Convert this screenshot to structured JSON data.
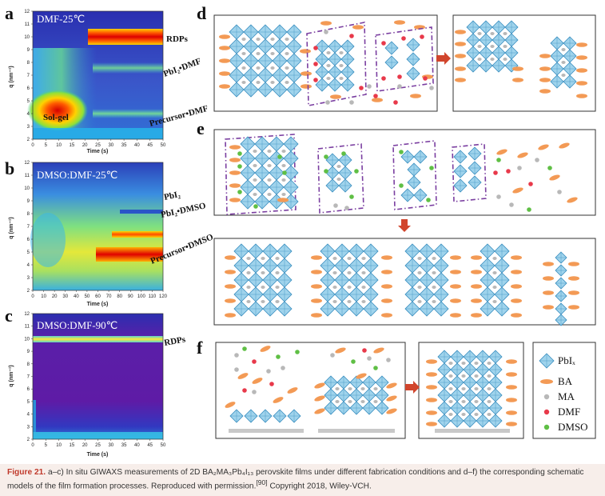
{
  "panels": {
    "a": {
      "label": "a",
      "condition": "DMF-25℃",
      "xlabel": "Time (s)",
      "ylabel": "q (nm⁻¹)",
      "xticks": [
        "0",
        "5",
        "10",
        "15",
        "20",
        "25",
        "30",
        "35",
        "40",
        "45",
        "50"
      ],
      "yticks": [
        "2",
        "3",
        "4",
        "5",
        "6",
        "7",
        "8",
        "9",
        "10",
        "11",
        "12"
      ],
      "annotations": {
        "rdps": "RDPs",
        "pbi2_dmf": "PbI₂•DMF",
        "precursor_dmf": "Precursor•DMF",
        "solgel": "Sol-gel"
      }
    },
    "b": {
      "label": "b",
      "condition": "DMSO:DMF-25℃",
      "xlabel": "Time (s)",
      "ylabel": "q (nm⁻¹)",
      "xticks": [
        "0",
        "10",
        "20",
        "30",
        "40",
        "50",
        "60",
        "70",
        "80",
        "90",
        "100",
        "110",
        "120"
      ],
      "yticks": [
        "2",
        "3",
        "4",
        "5",
        "6",
        "7",
        "8",
        "9",
        "10",
        "11",
        "12"
      ],
      "annotations": {
        "pbi2": "PbI₂",
        "pbi2_dmso": "PbI₂•DMSO",
        "precursor_dmso": "Precursor•DMSO"
      }
    },
    "c": {
      "label": "c",
      "condition": "DMSO:DMF-90℃",
      "xlabel": "Time (s)",
      "ylabel": "q (nm⁻¹)",
      "xticks": [
        "0",
        "5",
        "10",
        "15",
        "20",
        "25",
        "30",
        "35",
        "40",
        "45",
        "50"
      ],
      "yticks": [
        "2",
        "3",
        "4",
        "5",
        "6",
        "7",
        "8",
        "9",
        "10",
        "11",
        "12"
      ],
      "annotations": {
        "rdps": "RDPs"
      }
    },
    "d": {
      "label": "d"
    },
    "e": {
      "label": "e"
    },
    "f": {
      "label": "f"
    }
  },
  "legend": {
    "items": [
      {
        "name": "pbix",
        "label": "PbIₓ"
      },
      {
        "name": "ba",
        "label": "BA"
      },
      {
        "name": "ma",
        "label": "MA"
      },
      {
        "name": "dmf",
        "label": "DMF"
      },
      {
        "name": "dmso",
        "label": "DMSO"
      }
    ]
  },
  "colors": {
    "octahedron": "#9fd3ec",
    "octahedron_edge": "#3a8fc0",
    "ba": "#f39a55",
    "ma": "#b8b8b8",
    "dmf": "#e8394a",
    "dmso": "#5fbf45",
    "arrow": "#d1452c",
    "frame": "#7a3ea0"
  },
  "caption": {
    "figure": "Figure 21.",
    "text": "a–c) In situ GIWAXS measurements of 2D BA₂MA₃Pb₄I₁₃ perovskite films under different fabrication conditions and d–f) the corresponding schematic models of the film formation processes. Reproduced with permission.",
    "ref": "[90]",
    "copyright": "Copyright 2018, Wiley-VCH."
  }
}
